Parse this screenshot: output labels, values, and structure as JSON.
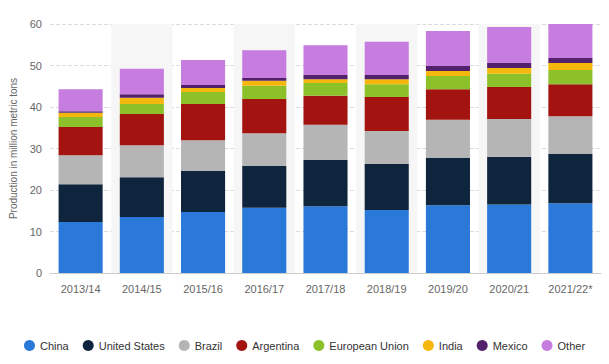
{
  "chart_data": {
    "type": "bar",
    "stacked": true,
    "grid": true,
    "legend": "bottom",
    "y_label": "Production in million metric tons",
    "categories": [
      "2013/14",
      "2014/15",
      "2015/16",
      "2016/17",
      "2017/18",
      "2018/19",
      "2019/20",
      "2020/21",
      "2021/22*"
    ],
    "ylim": [
      0,
      60
    ],
    "yticks": [
      0,
      10,
      20,
      30,
      40,
      50,
      60
    ],
    "series": [
      {
        "name": "China",
        "color": "#2a79d8",
        "values": [
          12.3,
          13.5,
          14.7,
          15.7,
          16.1,
          15.2,
          16.3,
          16.5,
          16.8
        ]
      },
      {
        "name": "United States",
        "color": "#0f253d",
        "values": [
          9.1,
          9.6,
          9.9,
          10.1,
          11.1,
          11.1,
          11.4,
          11.5,
          11.9
        ]
      },
      {
        "name": "Brazil",
        "color": "#b5b5b5",
        "values": [
          7.0,
          7.7,
          7.4,
          7.9,
          8.5,
          7.9,
          9.2,
          9.1,
          9.1
        ]
      },
      {
        "name": "Argentina",
        "color": "#a3130f",
        "values": [
          6.8,
          7.5,
          8.7,
          8.2,
          7.0,
          8.2,
          7.4,
          7.7,
          7.7
        ]
      },
      {
        "name": "European Union",
        "color": "#8cc12a",
        "values": [
          2.4,
          2.4,
          2.9,
          3.2,
          3.1,
          3.1,
          3.2,
          3.2,
          3.4
        ]
      },
      {
        "name": "India",
        "color": "#f5b70c",
        "values": [
          1.0,
          1.5,
          1.0,
          1.2,
          0.9,
          1.2,
          1.2,
          1.4,
          1.7
        ]
      },
      {
        "name": "Mexico",
        "color": "#53206b",
        "values": [
          0.4,
          0.9,
          0.7,
          0.7,
          1.0,
          1.0,
          1.2,
          1.2,
          1.2
        ]
      },
      {
        "name": "Other",
        "color": "#c67ddf",
        "values": [
          5.3,
          6.1,
          6.0,
          6.7,
          7.2,
          8.0,
          8.4,
          8.7,
          8.2
        ]
      }
    ]
  }
}
